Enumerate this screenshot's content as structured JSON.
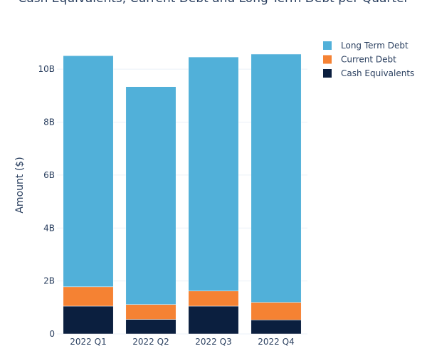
{
  "chart_data": {
    "type": "bar",
    "stacked": true,
    "title": "Cash Equivalents, Current Debt and Long Term Debt per Quarter",
    "xlabel": "",
    "ylabel": "Amount ($)",
    "categories": [
      "2022 Q1",
      "2022 Q2",
      "2022 Q3",
      "2022 Q4"
    ],
    "ylim": [
      0,
      11000000000
    ],
    "yticks": [
      0,
      2000000000,
      4000000000,
      6000000000,
      8000000000,
      10000000000
    ],
    "ytick_labels": [
      "0",
      "2B",
      "4B",
      "6B",
      "8B",
      "10B"
    ],
    "grid": true,
    "legend_position": "top-right",
    "series": [
      {
        "name": "Cash Equivalents",
        "color": "#0b1f3f",
        "values": [
          1050000000,
          550000000,
          1050000000,
          530000000
        ]
      },
      {
        "name": "Current Debt",
        "color": "#f58233",
        "values": [
          730000000,
          560000000,
          570000000,
          660000000
        ]
      },
      {
        "name": "Long Term Debt",
        "color": "#51b0d9",
        "values": [
          8730000000,
          8230000000,
          8840000000,
          9380000000
        ]
      }
    ],
    "legend_order": [
      "Long Term Debt",
      "Current Debt",
      "Cash Equivalents"
    ]
  }
}
